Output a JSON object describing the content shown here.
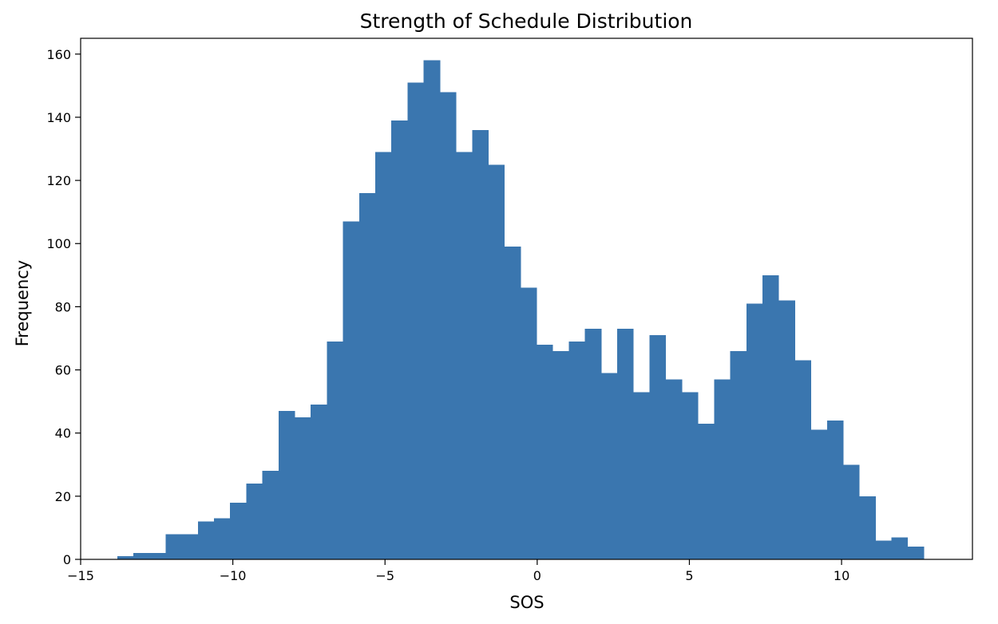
{
  "chart_data": {
    "type": "histogram",
    "title": "Strength of Schedule Distribution",
    "xlabel": "SOS",
    "ylabel": "Frequency",
    "xlim": [
      -15,
      14.3
    ],
    "ylim": [
      0,
      165
    ],
    "xticks": [
      -15,
      -10,
      -5,
      0,
      5,
      10
    ],
    "xtick_labels": [
      "−15",
      "−10",
      "−5",
      "0",
      "5",
      "10"
    ],
    "yticks": [
      0,
      20,
      40,
      60,
      80,
      100,
      120,
      140,
      160
    ],
    "bar_color": "#3a76af",
    "grid": false,
    "bins": {
      "start": -13.8,
      "width": 0.53,
      "counts": [
        1,
        2,
        2,
        8,
        8,
        12,
        13,
        18,
        24,
        28,
        47,
        45,
        49,
        69,
        107,
        116,
        129,
        139,
        151,
        158,
        148,
        129,
        136,
        125,
        99,
        86,
        68,
        66,
        69,
        73,
        59,
        73,
        53,
        71,
        57,
        53,
        43,
        57,
        66,
        81,
        90,
        82,
        63,
        41,
        44,
        30,
        20,
        6,
        7,
        4
      ]
    }
  }
}
